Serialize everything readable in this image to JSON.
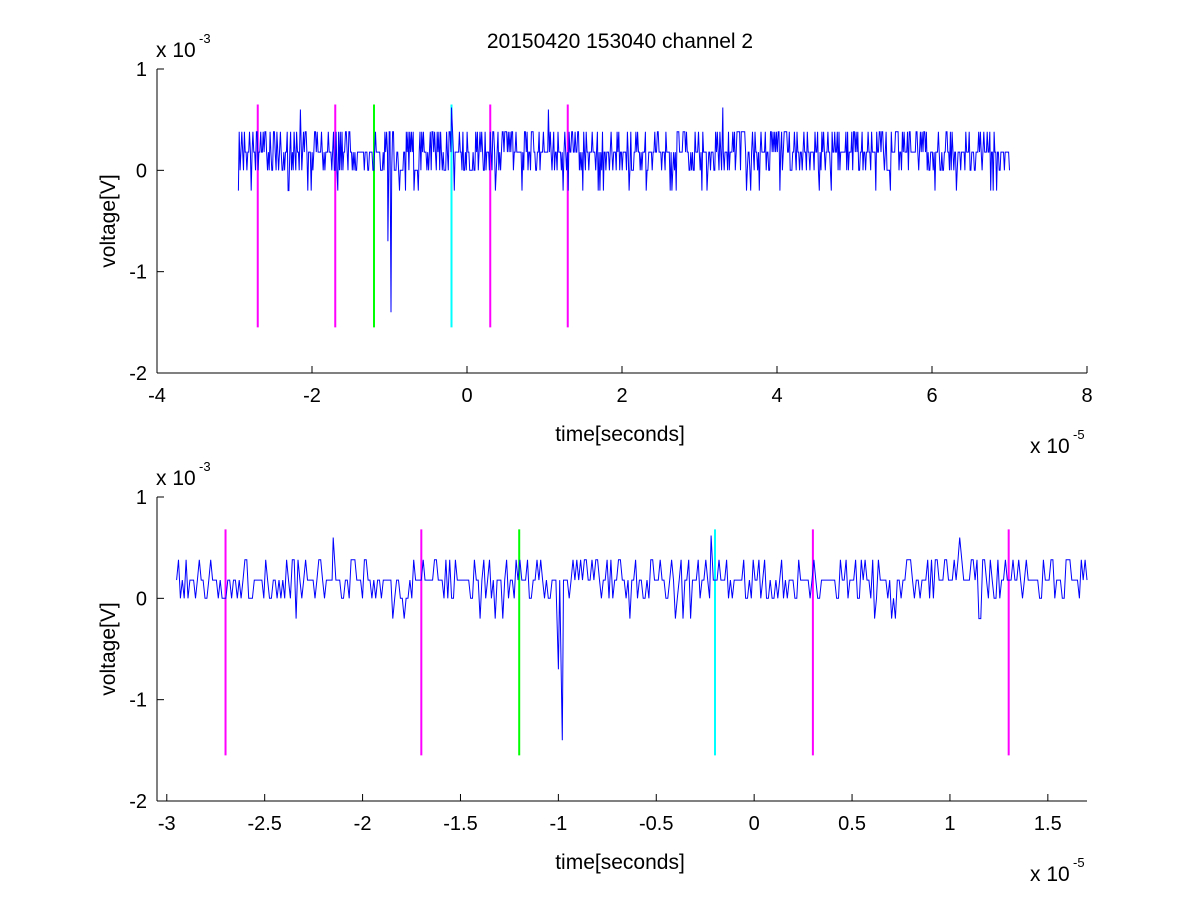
{
  "figure": {
    "title": "20150420 153040 channel 2",
    "background": "#ffffff"
  },
  "chart_data": [
    {
      "type": "line",
      "title": "20150420 153040 channel 2",
      "xlabel": "time[seconds]",
      "ylabel": "voltage[V]",
      "x_exponent_label": "x 10",
      "x_exponent": "-5",
      "y_exponent_label": "x 10",
      "y_exponent": "-3",
      "xlim": [
        -4,
        8
      ],
      "ylim": [
        -2,
        1
      ],
      "xticks": [
        -4,
        -2,
        0,
        2,
        4,
        6,
        8
      ],
      "xtick_labels": [
        "-4",
        "-2",
        "0",
        "2",
        "4",
        "6",
        "8"
      ],
      "yticks": [
        -2,
        -1,
        0,
        1
      ],
      "ytick_labels": [
        "-2",
        "-1",
        "0",
        "1"
      ],
      "grid": false,
      "series": [
        {
          "color": "#0000ff",
          "x_range": [
            -2.95,
            7.0
          ],
          "baseline": 0.18,
          "noise_levels": [
            0.0,
            0.18,
            0.38
          ],
          "features": [
            {
              "x": -0.98,
              "y": -1.4
            },
            {
              "x": -1.02,
              "y": -0.7
            },
            {
              "x": -2.15,
              "y": 0.6
            },
            {
              "x": 1.05,
              "y": 0.6
            },
            {
              "x": 3.3,
              "y": 0.62
            },
            {
              "x": -0.2,
              "y": 0.62
            }
          ]
        }
      ],
      "vlines": [
        {
          "x": -2.7,
          "color": "#ff00ff",
          "y_range": [
            -1.55,
            0.65
          ]
        },
        {
          "x": -1.7,
          "color": "#ff00ff",
          "y_range": [
            -1.55,
            0.65
          ]
        },
        {
          "x": -1.2,
          "color": "#00ff00",
          "y_range": [
            -1.55,
            0.65
          ]
        },
        {
          "x": -0.2,
          "color": "#00ffff",
          "y_range": [
            -1.55,
            0.65
          ]
        },
        {
          "x": 0.3,
          "color": "#ff00ff",
          "y_range": [
            -1.55,
            0.65
          ]
        },
        {
          "x": 1.3,
          "color": "#ff00ff",
          "y_range": [
            -1.55,
            0.65
          ]
        }
      ]
    },
    {
      "type": "line",
      "title": "",
      "xlabel": "time[seconds]",
      "ylabel": "voltage[V]",
      "x_exponent_label": "x 10",
      "x_exponent": "-5",
      "y_exponent_label": "x 10",
      "y_exponent": "-3",
      "xlim": [
        -3.05,
        1.7
      ],
      "ylim": [
        -2,
        1
      ],
      "xticks": [
        -3,
        -2.5,
        -2,
        -1.5,
        -1,
        -0.5,
        0,
        0.5,
        1,
        1.5
      ],
      "xtick_labels": [
        "-3",
        "-2.5",
        "-2",
        "-1.5",
        "-1",
        "-0.5",
        "0",
        "0.5",
        "1",
        "1.5"
      ],
      "yticks": [
        -2,
        -1,
        0,
        1
      ],
      "ytick_labels": [
        "-2",
        "-1",
        "0",
        "1"
      ],
      "grid": false,
      "series": [
        {
          "color": "#0000ff",
          "x_range": [
            -2.95,
            1.7
          ],
          "baseline": 0.18,
          "noise_levels": [
            0.0,
            0.18,
            0.38
          ],
          "features": [
            {
              "x": -0.98,
              "y": -1.4
            },
            {
              "x": -1.0,
              "y": -0.7
            },
            {
              "x": -2.15,
              "y": 0.6
            },
            {
              "x": 1.05,
              "y": 0.6
            },
            {
              "x": -0.22,
              "y": 0.62
            }
          ]
        }
      ],
      "vlines": [
        {
          "x": -2.7,
          "color": "#ff00ff",
          "y_range": [
            -1.55,
            0.68
          ]
        },
        {
          "x": -1.7,
          "color": "#ff00ff",
          "y_range": [
            -1.55,
            0.68
          ]
        },
        {
          "x": -1.2,
          "color": "#00ff00",
          "y_range": [
            -1.55,
            0.68
          ]
        },
        {
          "x": -0.2,
          "color": "#00ffff",
          "y_range": [
            -1.55,
            0.68
          ]
        },
        {
          "x": 0.3,
          "color": "#ff00ff",
          "y_range": [
            -1.55,
            0.68
          ]
        },
        {
          "x": 1.3,
          "color": "#ff00ff",
          "y_range": [
            -1.55,
            0.68
          ]
        }
      ]
    }
  ]
}
